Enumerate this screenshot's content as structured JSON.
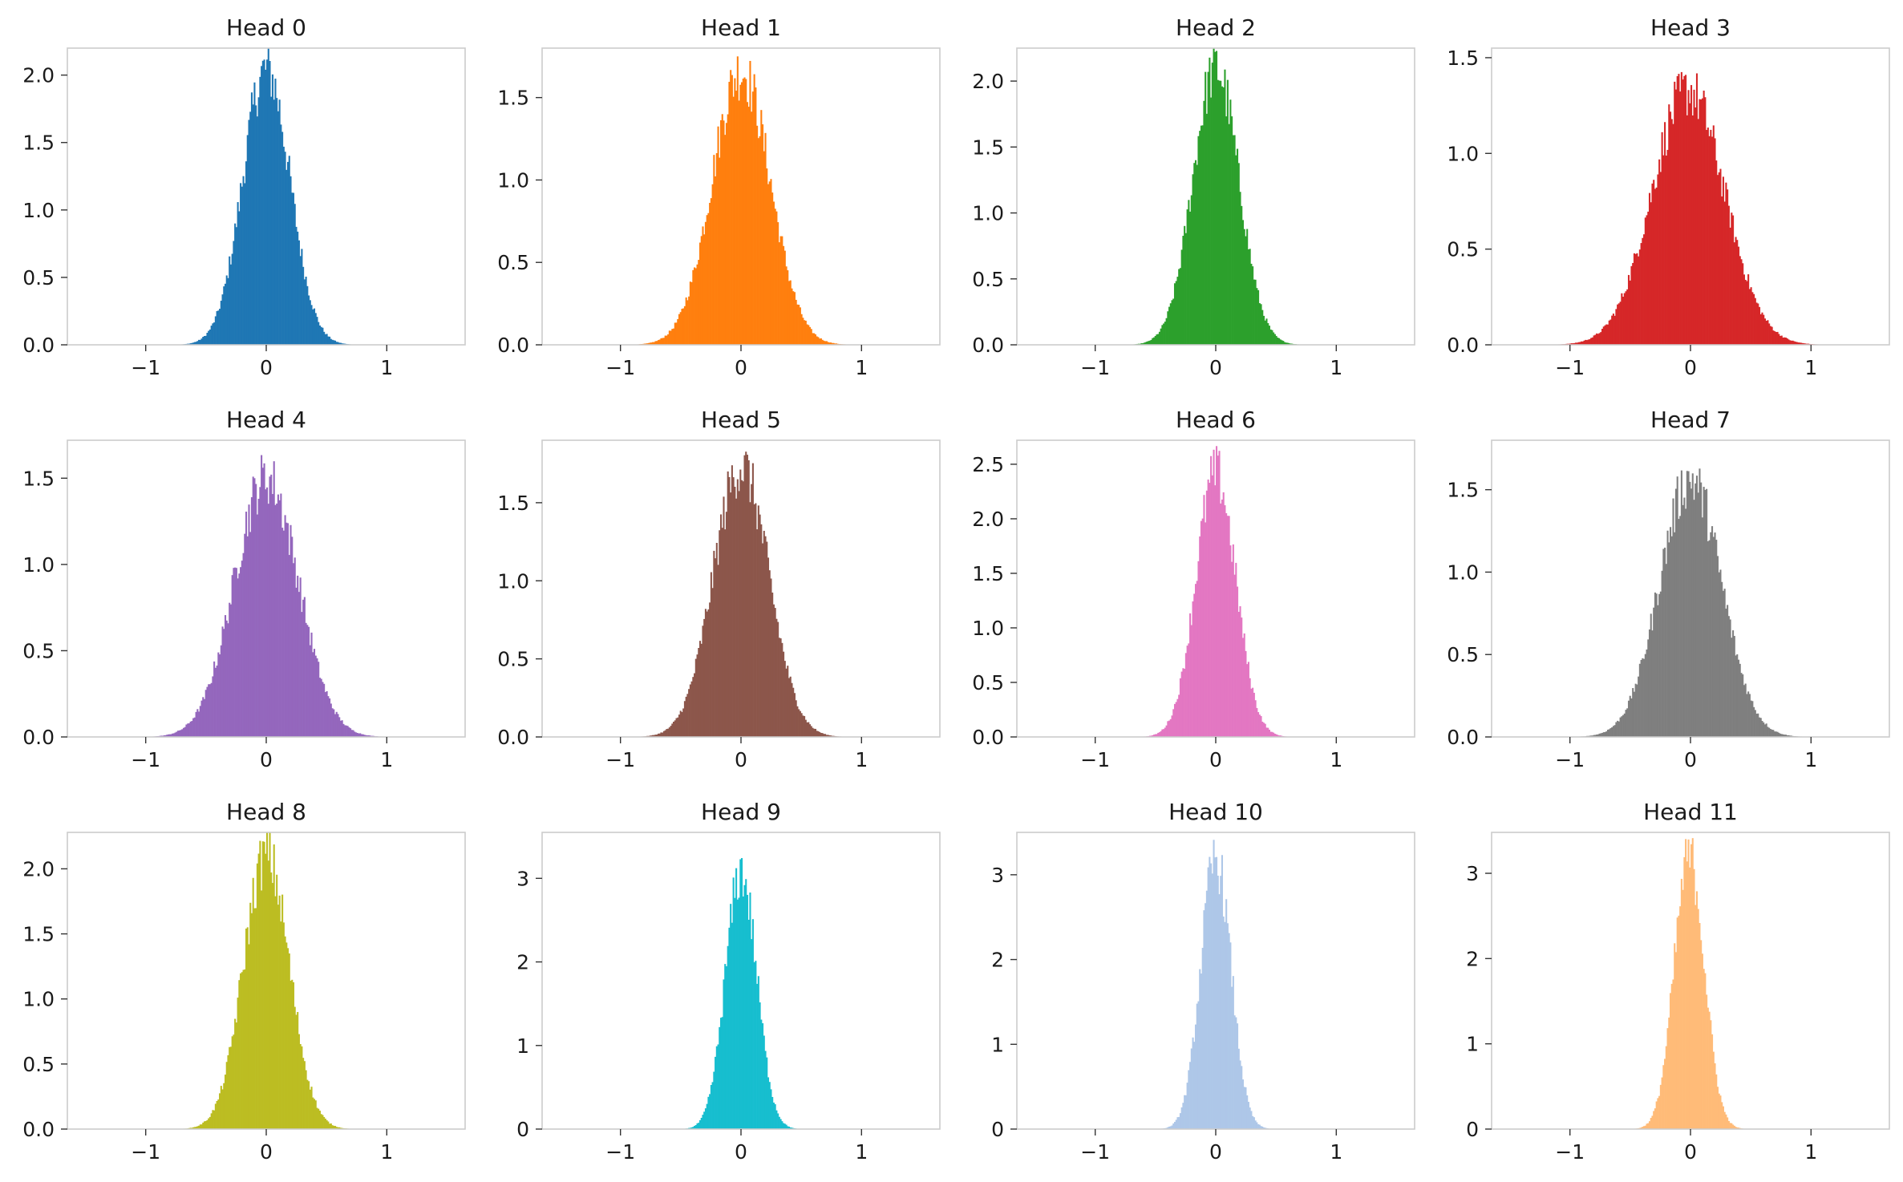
{
  "chart_data": [
    {
      "type": "bar",
      "title": "Head 0",
      "color": "#1f77b4",
      "mu": 0.0,
      "sigma": 0.195,
      "xlim": [
        -1.65,
        1.65
      ],
      "ylim": [
        0,
        2.2
      ],
      "xticks": [
        {
          "v": -1,
          "label": "−1"
        },
        {
          "v": 0,
          "label": "0"
        },
        {
          "v": 1,
          "label": "1"
        }
      ],
      "yticks": [
        {
          "v": 0,
          "label": "0.0"
        },
        {
          "v": 0.5,
          "label": "0.5"
        },
        {
          "v": 1.0,
          "label": "1.0"
        },
        {
          "v": 1.5,
          "label": "1.5"
        },
        {
          "v": 2.0,
          "label": "2.0"
        }
      ],
      "peak": 2.05
    },
    {
      "type": "bar",
      "title": "Head 1",
      "color": "#ff7f0e",
      "mu": 0.0,
      "sigma": 0.24,
      "xlim": [
        -1.65,
        1.65
      ],
      "ylim": [
        0,
        1.8
      ],
      "xticks": [
        {
          "v": -1,
          "label": "−1"
        },
        {
          "v": 0,
          "label": "0"
        },
        {
          "v": 1,
          "label": "1"
        }
      ],
      "yticks": [
        {
          "v": 0,
          "label": "0.0"
        },
        {
          "v": 0.5,
          "label": "0.5"
        },
        {
          "v": 1.0,
          "label": "1.0"
        },
        {
          "v": 1.5,
          "label": "1.5"
        }
      ],
      "peak": 1.65
    },
    {
      "type": "bar",
      "title": "Head 2",
      "color": "#2ca02c",
      "mu": 0.0,
      "sigma": 0.19,
      "xlim": [
        -1.65,
        1.65
      ],
      "ylim": [
        0,
        2.25
      ],
      "xticks": [
        {
          "v": -1,
          "label": "−1"
        },
        {
          "v": 0,
          "label": "0"
        },
        {
          "v": 1,
          "label": "1"
        }
      ],
      "yticks": [
        {
          "v": 0,
          "label": "0.0"
        },
        {
          "v": 0.5,
          "label": "0.5"
        },
        {
          "v": 1.0,
          "label": "1.0"
        },
        {
          "v": 1.5,
          "label": "1.5"
        },
        {
          "v": 2.0,
          "label": "2.0"
        }
      ],
      "peak": 2.12
    },
    {
      "type": "bar",
      "title": "Head 3",
      "color": "#d62728",
      "mu": -0.02,
      "sigma": 0.3,
      "xlim": [
        -1.65,
        1.65
      ],
      "ylim": [
        0,
        1.55
      ],
      "xticks": [
        {
          "v": -1,
          "label": "−1"
        },
        {
          "v": 0,
          "label": "0"
        },
        {
          "v": 1,
          "label": "1"
        }
      ],
      "yticks": [
        {
          "v": 0,
          "label": "0.0"
        },
        {
          "v": 0.5,
          "label": "0.5"
        },
        {
          "v": 1.0,
          "label": "1.0"
        },
        {
          "v": 1.5,
          "label": "1.5"
        }
      ],
      "peak": 1.48
    },
    {
      "type": "bar",
      "title": "Head 4",
      "color": "#9467bd",
      "mu": 0.0,
      "sigma": 0.265,
      "xlim": [
        -1.65,
        1.65
      ],
      "ylim": [
        0,
        1.72
      ],
      "xticks": [
        {
          "v": -1,
          "label": "−1"
        },
        {
          "v": 0,
          "label": "0"
        },
        {
          "v": 1,
          "label": "1"
        }
      ],
      "yticks": [
        {
          "v": 0,
          "label": "0.0"
        },
        {
          "v": 0.5,
          "label": "0.5"
        },
        {
          "v": 1.0,
          "label": "1.0"
        },
        {
          "v": 1.5,
          "label": "1.5"
        }
      ],
      "peak": 1.62
    },
    {
      "type": "bar",
      "title": "Head 5",
      "color": "#8c564b",
      "mu": 0.0,
      "sigma": 0.23,
      "xlim": [
        -1.65,
        1.65
      ],
      "ylim": [
        0,
        1.9
      ],
      "xticks": [
        {
          "v": -1,
          "label": "−1"
        },
        {
          "v": 0,
          "label": "0"
        },
        {
          "v": 1,
          "label": "1"
        }
      ],
      "yticks": [
        {
          "v": 0,
          "label": "0.0"
        },
        {
          "v": 0.5,
          "label": "0.5"
        },
        {
          "v": 1.0,
          "label": "1.0"
        },
        {
          "v": 1.5,
          "label": "1.5"
        }
      ],
      "peak": 1.8
    },
    {
      "type": "bar",
      "title": "Head 6",
      "color": "#e377c2",
      "mu": 0.0,
      "sigma": 0.165,
      "xlim": [
        -1.65,
        1.65
      ],
      "ylim": [
        0,
        2.72
      ],
      "xticks": [
        {
          "v": -1,
          "label": "−1"
        },
        {
          "v": 0,
          "label": "0"
        },
        {
          "v": 1,
          "label": "1"
        }
      ],
      "yticks": [
        {
          "v": 0,
          "label": "0.0"
        },
        {
          "v": 0.5,
          "label": "0.5"
        },
        {
          "v": 1.0,
          "label": "1.0"
        },
        {
          "v": 1.5,
          "label": "1.5"
        },
        {
          "v": 2.0,
          "label": "2.0"
        },
        {
          "v": 2.5,
          "label": "2.5"
        }
      ],
      "peak": 2.6
    },
    {
      "type": "bar",
      "title": "Head 7",
      "color": "#7f7f7f",
      "mu": 0.0,
      "sigma": 0.255,
      "xlim": [
        -1.65,
        1.65
      ],
      "ylim": [
        0,
        1.8
      ],
      "xticks": [
        {
          "v": -1,
          "label": "−1"
        },
        {
          "v": 0,
          "label": "0"
        },
        {
          "v": 1,
          "label": "1"
        }
      ],
      "yticks": [
        {
          "v": 0,
          "label": "0.0"
        },
        {
          "v": 0.5,
          "label": "0.5"
        },
        {
          "v": 1.0,
          "label": "1.0"
        },
        {
          "v": 1.5,
          "label": "1.5"
        }
      ],
      "peak": 1.65
    },
    {
      "type": "bar",
      "title": "Head 8",
      "color": "#bcbd22",
      "mu": 0.0,
      "sigma": 0.19,
      "xlim": [
        -1.65,
        1.65
      ],
      "ylim": [
        0,
        2.28
      ],
      "xticks": [
        {
          "v": -1,
          "label": "−1"
        },
        {
          "v": 0,
          "label": "0"
        },
        {
          "v": 1,
          "label": "1"
        }
      ],
      "yticks": [
        {
          "v": 0,
          "label": "0.0"
        },
        {
          "v": 0.5,
          "label": "0.5"
        },
        {
          "v": 1.0,
          "label": "1.0"
        },
        {
          "v": 1.5,
          "label": "1.5"
        },
        {
          "v": 2.0,
          "label": "2.0"
        }
      ],
      "peak": 2.18
    },
    {
      "type": "bar",
      "title": "Head 9",
      "color": "#17becf",
      "mu": 0.0,
      "sigma": 0.13,
      "xlim": [
        -1.65,
        1.65
      ],
      "ylim": [
        0,
        3.55
      ],
      "xticks": [
        {
          "v": -1,
          "label": "−1"
        },
        {
          "v": 0,
          "label": "0"
        },
        {
          "v": 1,
          "label": "1"
        }
      ],
      "yticks": [
        {
          "v": 0,
          "label": "0"
        },
        {
          "v": 1,
          "label": "1"
        },
        {
          "v": 2,
          "label": "2"
        },
        {
          "v": 3,
          "label": "3"
        }
      ],
      "peak": 3.15
    },
    {
      "type": "bar",
      "title": "Head 10",
      "color": "#aec7e8",
      "mu": 0.0,
      "sigma": 0.125,
      "xlim": [
        -1.65,
        1.65
      ],
      "ylim": [
        0,
        3.5
      ],
      "xticks": [
        {
          "v": -1,
          "label": "−1"
        },
        {
          "v": 0,
          "label": "0"
        },
        {
          "v": 1,
          "label": "1"
        }
      ],
      "yticks": [
        {
          "v": 0,
          "label": "0"
        },
        {
          "v": 1,
          "label": "1"
        },
        {
          "v": 2,
          "label": "2"
        },
        {
          "v": 3,
          "label": "3"
        }
      ],
      "peak": 3.3
    },
    {
      "type": "bar",
      "title": "Head 11",
      "color": "#ffbb78",
      "mu": -0.01,
      "sigma": 0.125,
      "xlim": [
        -1.65,
        1.65
      ],
      "ylim": [
        0,
        3.48
      ],
      "xticks": [
        {
          "v": -1,
          "label": "−1"
        },
        {
          "v": 0,
          "label": "0"
        },
        {
          "v": 1,
          "label": "1"
        }
      ],
      "yticks": [
        {
          "v": 0,
          "label": "0"
        },
        {
          "v": 1,
          "label": "1"
        },
        {
          "v": 2,
          "label": "2"
        },
        {
          "v": 3,
          "label": "3"
        }
      ],
      "peak": 3.28
    }
  ]
}
